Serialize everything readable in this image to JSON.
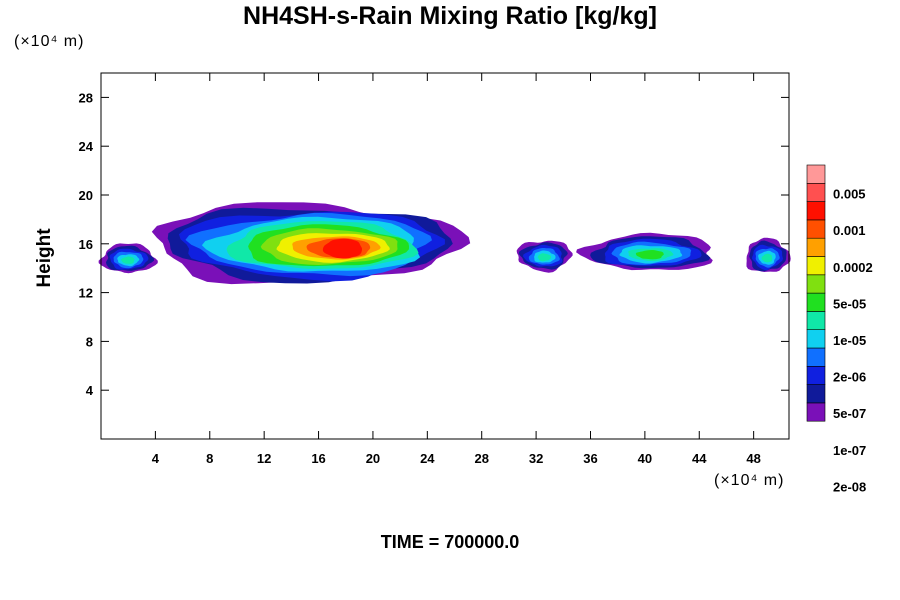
{
  "chart_data": {
    "type": "heatmap",
    "title": "NH4SH-s-Rain Mixing Ratio [kg/kg]",
    "ylabel": "Height",
    "xlabel": "",
    "x_unit": "(×10⁴ m)",
    "y_unit": "(×10⁴ m)",
    "xlim": [
      0,
      50.6
    ],
    "ylim": [
      0,
      30
    ],
    "x_ticks": [
      4,
      8,
      12,
      16,
      20,
      24,
      28,
      32,
      36,
      40,
      44,
      48
    ],
    "y_ticks": [
      4,
      8,
      12,
      16,
      20,
      24,
      28
    ],
    "grid": false,
    "legend": {
      "placement": "right",
      "labels": [
        "0.005",
        "0.001",
        "0.0002",
        "5e-05",
        "1e-05",
        "2e-06",
        "5e-07",
        "1e-07",
        "2e-08"
      ],
      "colors": [
        "#7a10b8",
        "#101a9a",
        "#1020e0",
        "#1070ff",
        "#10d0f0",
        "#10e8a8",
        "#20e020",
        "#80e010",
        "#f0f000",
        "#ffa000",
        "#ff5000",
        "#ff1000",
        "#ff5050",
        "#ff9898"
      ]
    },
    "regions": [
      {
        "x": [
          0,
          4
        ],
        "y": [
          13.6,
          16.0
        ],
        "peak": 6
      },
      {
        "x": [
          3.6,
          26.2
        ],
        "y": [
          12.8,
          19.3
        ],
        "peak": 12
      },
      {
        "x": [
          30.6,
          34.6
        ],
        "y": [
          13.8,
          16.3
        ],
        "peak": 6
      },
      {
        "x": [
          35.6,
          45.2
        ],
        "y": [
          13.8,
          16.8
        ],
        "peak": 7
      },
      {
        "x": [
          47.4,
          50.6
        ],
        "y": [
          13.6,
          16.4
        ],
        "peak": 6
      }
    ]
  },
  "footer": {
    "time_label": "TIME = 700000.0"
  }
}
